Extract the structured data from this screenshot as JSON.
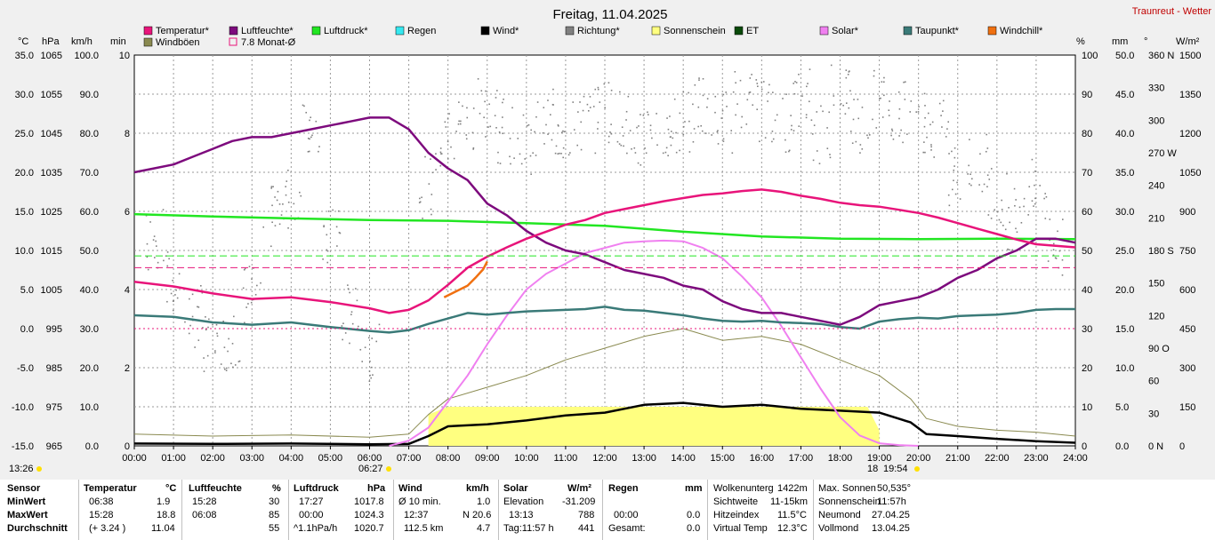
{
  "title": "Freitag, 11.04.2025",
  "brand": "Traunreut - Wetter",
  "legend": [
    {
      "label": "Temperatur*",
      "color": "#e8147a"
    },
    {
      "label": "Luftfeuchte*",
      "color": "#7d0a7d"
    },
    {
      "label": "Luftdruck*",
      "color": "#22e622"
    },
    {
      "label": "Regen",
      "color": "#35e8f0"
    },
    {
      "label": "Wind*",
      "color": "#000000"
    },
    {
      "label": "Richtung*",
      "color": "#808080"
    },
    {
      "label": "Sonnenschein",
      "color": "#ffff80"
    },
    {
      "label": "ET",
      "color": "#0a4a0a"
    },
    {
      "label": "Solar*",
      "color": "#f080f0"
    },
    {
      "label": "Taupunkt*",
      "color": "#3a7a78"
    },
    {
      "label": "Windchill*",
      "color": "#f07010"
    },
    {
      "label": "Windböen",
      "color": "#8a8a50"
    },
    {
      "label": "7.8 Monat-Ø",
      "color": "#e8147a"
    }
  ],
  "axis_units": {
    "temp": "°C",
    "pres": "hPa",
    "wind": "km/h",
    "min": "min",
    "hum": "%",
    "rain": "mm",
    "dir": "°",
    "solar": "W/m²"
  },
  "below_axis": {
    "left_time": "13:26",
    "sunrise": "06:27",
    "sunset_prefix": "18",
    "sunset": "19:54"
  },
  "chart_data": {
    "type": "line",
    "x_ticks": [
      "00:00",
      "01:00",
      "02:00",
      "03:00",
      "04:00",
      "05:00",
      "06:00",
      "07:00",
      "08:00",
      "09:00",
      "10:00",
      "11:00",
      "12:00",
      "13:00",
      "14:00",
      "15:00",
      "16:00",
      "17:00",
      "18:00",
      "19:00",
      "20:00",
      "21:00",
      "22:00",
      "23:00",
      "24:00"
    ],
    "axes": {
      "temp": {
        "ticks": [
          "35.0",
          "30.0",
          "25.0",
          "20.0",
          "15.0",
          "10.0",
          "5.0",
          "0.0",
          "-5.0",
          "-10.0",
          "-15.0"
        ],
        "range": [
          -15,
          35
        ]
      },
      "pres": {
        "ticks": [
          "1065",
          "1055",
          "1045",
          "1035",
          "1025",
          "1015",
          "1005",
          "995",
          "985",
          "975",
          "965"
        ],
        "range": [
          965,
          1065
        ]
      },
      "wind": {
        "ticks": [
          "100.0",
          "90.0",
          "80.0",
          "70.0",
          "60.0",
          "50.0",
          "40.0",
          "30.0",
          "20.0",
          "10.0",
          "0.0"
        ],
        "range": [
          0,
          100
        ]
      },
      "min": {
        "ticks": [
          "10",
          "8",
          "6",
          "4",
          "2",
          "0"
        ],
        "range": [
          0,
          10
        ]
      },
      "hum": {
        "ticks": [
          "100",
          "90",
          "80",
          "70",
          "60",
          "50",
          "40",
          "30",
          "20",
          "10",
          "0"
        ],
        "range": [
          0,
          100
        ]
      },
      "rain": {
        "ticks": [
          "50.0",
          "45.0",
          "40.0",
          "35.0",
          "30.0",
          "25.0",
          "20.0",
          "15.0",
          "10.0",
          "5.0",
          "0.0"
        ],
        "range": [
          0,
          50
        ]
      },
      "dir": {
        "ticks": [
          "360 N",
          "330",
          "300",
          "270 W",
          "240",
          "210",
          "180 S",
          "150",
          "120",
          "90 O",
          "60",
          "30",
          "0 N"
        ],
        "range": [
          0,
          360
        ]
      },
      "solar": {
        "ticks": [
          "1500",
          "1350",
          "1200",
          "1050",
          "900",
          "750",
          "600",
          "450",
          "300",
          "150",
          "0"
        ],
        "range": [
          0,
          1500
        ]
      }
    },
    "series": [
      {
        "name": "Temperatur*",
        "axis": "temp",
        "color": "#e8147a",
        "x": [
          0,
          1,
          2,
          3,
          4,
          5,
          6,
          6.5,
          7,
          7.5,
          8,
          8.5,
          9,
          9.5,
          10,
          10.5,
          11,
          11.5,
          12,
          12.5,
          13,
          13.5,
          14,
          14.5,
          15,
          15.5,
          16,
          16.5,
          17,
          17.5,
          18,
          18.5,
          19,
          19.5,
          20,
          20.5,
          21,
          21.5,
          22,
          22.5,
          23,
          23.5,
          24
        ],
        "y": [
          6.0,
          5.4,
          4.5,
          3.8,
          4.0,
          3.4,
          2.6,
          2.0,
          2.4,
          3.6,
          5.6,
          7.8,
          9.2,
          10.4,
          11.5,
          12.4,
          13.3,
          13.9,
          14.8,
          15.3,
          15.8,
          16.3,
          16.7,
          17.1,
          17.3,
          17.6,
          17.8,
          17.5,
          17.0,
          16.6,
          16.1,
          15.8,
          15.6,
          15.2,
          14.8,
          14.2,
          13.5,
          12.8,
          12.1,
          11.4,
          10.8,
          10.6,
          10.4
        ]
      },
      {
        "name": "Luftfeuchte*",
        "axis": "hum",
        "color": "#7d0a7d",
        "x": [
          0,
          0.5,
          1,
          1.5,
          2,
          2.5,
          3,
          3.5,
          4,
          4.5,
          5,
          5.5,
          6,
          6.5,
          7,
          7.5,
          8,
          8.5,
          9,
          9.5,
          10,
          10.5,
          11,
          11.5,
          12,
          12.5,
          13,
          13.5,
          14,
          14.5,
          15,
          15.5,
          16,
          16.5,
          17,
          17.5,
          18,
          18.5,
          19,
          19.5,
          20,
          20.5,
          21,
          21.5,
          22,
          22.5,
          23,
          23.5,
          24
        ],
        "y": [
          70,
          71,
          72,
          74,
          76,
          78,
          79,
          79,
          80,
          81,
          82,
          83,
          84,
          84,
          81,
          75,
          71,
          68,
          62,
          59,
          55,
          52,
          50,
          49,
          47,
          45,
          44,
          43,
          41,
          40,
          37,
          35,
          34,
          34,
          33,
          32,
          31,
          33,
          36,
          37,
          38,
          40,
          43,
          45,
          48,
          50,
          53,
          53,
          52
        ]
      },
      {
        "name": "Luftdruck*",
        "axis": "pres",
        "color": "#22e622",
        "x": [
          0,
          2,
          4,
          6,
          8,
          10,
          12,
          14,
          16,
          18,
          20,
          22,
          24
        ],
        "y": [
          1024.3,
          1023.7,
          1023.2,
          1022.8,
          1022.6,
          1022.0,
          1021.3,
          1019.8,
          1018.6,
          1018.0,
          1017.9,
          1018.0,
          1017.9
        ]
      },
      {
        "name": "Taupunkt*",
        "axis": "temp",
        "color": "#3a7a78",
        "x": [
          0,
          1,
          2,
          3,
          4,
          5,
          6,
          6.5,
          7,
          7.5,
          8,
          8.5,
          9,
          9.5,
          10,
          10.5,
          11,
          11.5,
          12,
          12.5,
          13,
          13.5,
          14,
          14.5,
          15,
          15.5,
          16,
          16.5,
          17,
          17.5,
          18,
          18.5,
          19,
          19.5,
          20,
          20.5,
          21,
          21.5,
          22,
          22.5,
          23,
          23.5,
          24
        ],
        "y": [
          1.7,
          1.5,
          0.8,
          0.5,
          0.8,
          0.2,
          -0.3,
          -0.5,
          -0.2,
          0.6,
          1.3,
          2.0,
          1.8,
          2.0,
          2.2,
          2.3,
          2.4,
          2.5,
          2.8,
          2.4,
          2.3,
          2.0,
          1.7,
          1.3,
          1.0,
          0.9,
          1.0,
          0.8,
          0.7,
          0.6,
          0.2,
          0.0,
          0.9,
          1.2,
          1.4,
          1.3,
          1.6,
          1.7,
          1.8,
          2.0,
          2.4,
          2.5,
          2.5
        ]
      },
      {
        "name": "Windchill*",
        "axis": "temp",
        "color": "#f07010",
        "x": [
          7.9,
          8.1,
          8.3,
          8.5,
          8.7,
          8.9,
          9.0
        ],
        "y": [
          4.0,
          4.5,
          5.0,
          5.5,
          6.5,
          7.6,
          8.6
        ]
      },
      {
        "name": "Solar*",
        "axis": "solar",
        "color": "#f080f0",
        "x": [
          6.5,
          7,
          7.5,
          8,
          8.5,
          9,
          9.5,
          10,
          10.5,
          11,
          11.5,
          12,
          12.5,
          13,
          13.5,
          14,
          14.5,
          15,
          15.5,
          16,
          16.5,
          17,
          17.5,
          18,
          18.5,
          19,
          19.5,
          20
        ],
        "y": [
          0,
          20,
          70,
          170,
          270,
          390,
          500,
          600,
          660,
          700,
          740,
          760,
          780,
          785,
          788,
          785,
          760,
          720,
          650,
          570,
          460,
          340,
          220,
          110,
          40,
          10,
          3,
          0
        ]
      },
      {
        "name": "Wind*",
        "axis": "wind",
        "color": "#000000",
        "x": [
          0,
          2,
          4,
          6,
          7,
          7.5,
          8,
          9,
          10,
          11,
          12,
          13,
          14,
          15,
          16,
          17,
          18,
          19,
          19.8,
          20.2,
          21,
          22,
          23,
          24
        ],
        "y": [
          0.6,
          0.5,
          0.6,
          0.4,
          0.5,
          2.5,
          5.0,
          5.5,
          6.5,
          7.8,
          8.5,
          10.5,
          11.0,
          10.0,
          10.5,
          9.5,
          9.0,
          8.5,
          6.0,
          3.0,
          2.5,
          1.8,
          1.2,
          0.8
        ]
      },
      {
        "name": "Windböen",
        "axis": "wind",
        "color": "#8a8a50",
        "x": [
          0,
          2,
          4,
          6,
          7,
          7.5,
          8,
          9,
          10,
          11,
          12,
          13,
          14,
          15,
          16,
          17,
          18,
          19,
          19.8,
          20.2,
          21,
          22,
          23,
          24
        ],
        "y": [
          3,
          2.5,
          2.8,
          2.2,
          3,
          8,
          12,
          15,
          18,
          22,
          25,
          28,
          30,
          27,
          28,
          26,
          22,
          18,
          12,
          7,
          5,
          4,
          3.5,
          2.5
        ]
      },
      {
        "name": "Sonnenschein",
        "axis": "min",
        "color": "#ffff80",
        "x": [
          7.5,
          8,
          9,
          10,
          11,
          12,
          13,
          14,
          15,
          16,
          17,
          18,
          18.7,
          19
        ],
        "y": [
          0.8,
          1.0,
          1.0,
          1.0,
          1.0,
          1.0,
          1.0,
          1.0,
          1.0,
          1.0,
          1.0,
          1.0,
          1.0,
          0.4
        ]
      },
      {
        "name": "Richtung*",
        "axis": "dir",
        "color": "#808080",
        "x": [
          0.5,
          1.0,
          1.5,
          2.0,
          2.5,
          3.0,
          3.5,
          4.0,
          4.5,
          5.0,
          5.5,
          6.0,
          7.5,
          8.0,
          8.5,
          9.0,
          9.5,
          10.0,
          10.5,
          11.0,
          11.5,
          12.0,
          12.5,
          13.0,
          13.5,
          14.0,
          14.5,
          15.0,
          15.5,
          16.0,
          16.5,
          17.0,
          17.5,
          18.0,
          18.5,
          19.0,
          19.5,
          20.0,
          20.5,
          21.0,
          21.5,
          22.0,
          22.5,
          23.0,
          23.5
        ],
        "y": [
          190,
          150,
          120,
          90,
          100,
          140,
          210,
          230,
          300,
          190,
          120,
          90,
          240,
          280,
          300,
          310,
          290,
          280,
          300,
          290,
          300,
          310,
          300,
          280,
          290,
          300,
          310,
          300,
          320,
          310,
          300,
          320,
          290,
          330,
          300,
          320,
          310,
          300,
          290,
          250,
          260,
          230,
          210,
          240,
          180
        ]
      }
    ],
    "reference_lines": [
      {
        "label": "7.8 Monat-Ø",
        "axis": "temp",
        "value": 7.8,
        "color": "#e8147a"
      },
      {
        "axis": "hum",
        "value": 48.6,
        "color": "#22e622"
      },
      {
        "axis": "temp",
        "value": 0,
        "color": "#e8147a"
      }
    ],
    "grid": true
  },
  "stats": {
    "row_labels": [
      "Sensor",
      "MinWert",
      "MaxWert",
      "Durchschnitt"
    ],
    "temperatur": {
      "head": "Temperatur",
      "unit": "°C",
      "rows": [
        [
          "06:38",
          "1.9"
        ],
        [
          "15:28",
          "18.8"
        ],
        [
          "(+ 3.24 )",
          "11.04"
        ]
      ]
    },
    "luftfeuchte": {
      "head": "Luftfeuchte",
      "unit": "%",
      "rows": [
        [
          "15:28",
          "30"
        ],
        [
          "06:08",
          "85"
        ],
        [
          "",
          "55"
        ]
      ]
    },
    "luftdruck": {
      "head": "Luftdruck",
      "unit": "hPa",
      "rows": [
        [
          "17:27",
          "1017.8"
        ],
        [
          "00:00",
          "1024.3"
        ],
        [
          "^1.1hPa/h",
          "1020.7"
        ]
      ]
    },
    "wind": {
      "head": "Wind",
      "unit": "km/h",
      "rows": [
        [
          "Ø 10 min.",
          "1.0"
        ],
        [
          "12:37",
          "N 20.6"
        ],
        [
          "112.5 km",
          "4.7"
        ]
      ]
    },
    "solar": {
      "head": "Solar",
      "unit": "W/m²",
      "rows": [
        [
          "Elevation",
          "-31.209"
        ],
        [
          "13:13",
          "788"
        ],
        [
          "Tag:11:57 h",
          "441"
        ]
      ]
    },
    "regen": {
      "head": "Regen",
      "unit": "mm",
      "rows": [
        [
          "",
          ""
        ],
        [
          "00:00",
          "0.0"
        ],
        [
          "Gesamt:",
          "0.0"
        ]
      ]
    },
    "misc1": [
      [
        "Wolkenunterg",
        "1422m"
      ],
      [
        "Sichtweite",
        "11-15km"
      ],
      [
        "Hitzeindex",
        "11.5°C"
      ],
      [
        "Virtual Temp",
        "12.3°C"
      ]
    ],
    "misc2": [
      [
        "Max. Sonnen",
        "50,535°"
      ],
      [
        "Sonnenschein",
        "11:57h"
      ],
      [
        "Neumond",
        "27.04.25"
      ],
      [
        "Vollmond",
        "13.04.25"
      ]
    ],
    "first_row_blank": [
      "",
      "",
      "",
      ""
    ]
  }
}
